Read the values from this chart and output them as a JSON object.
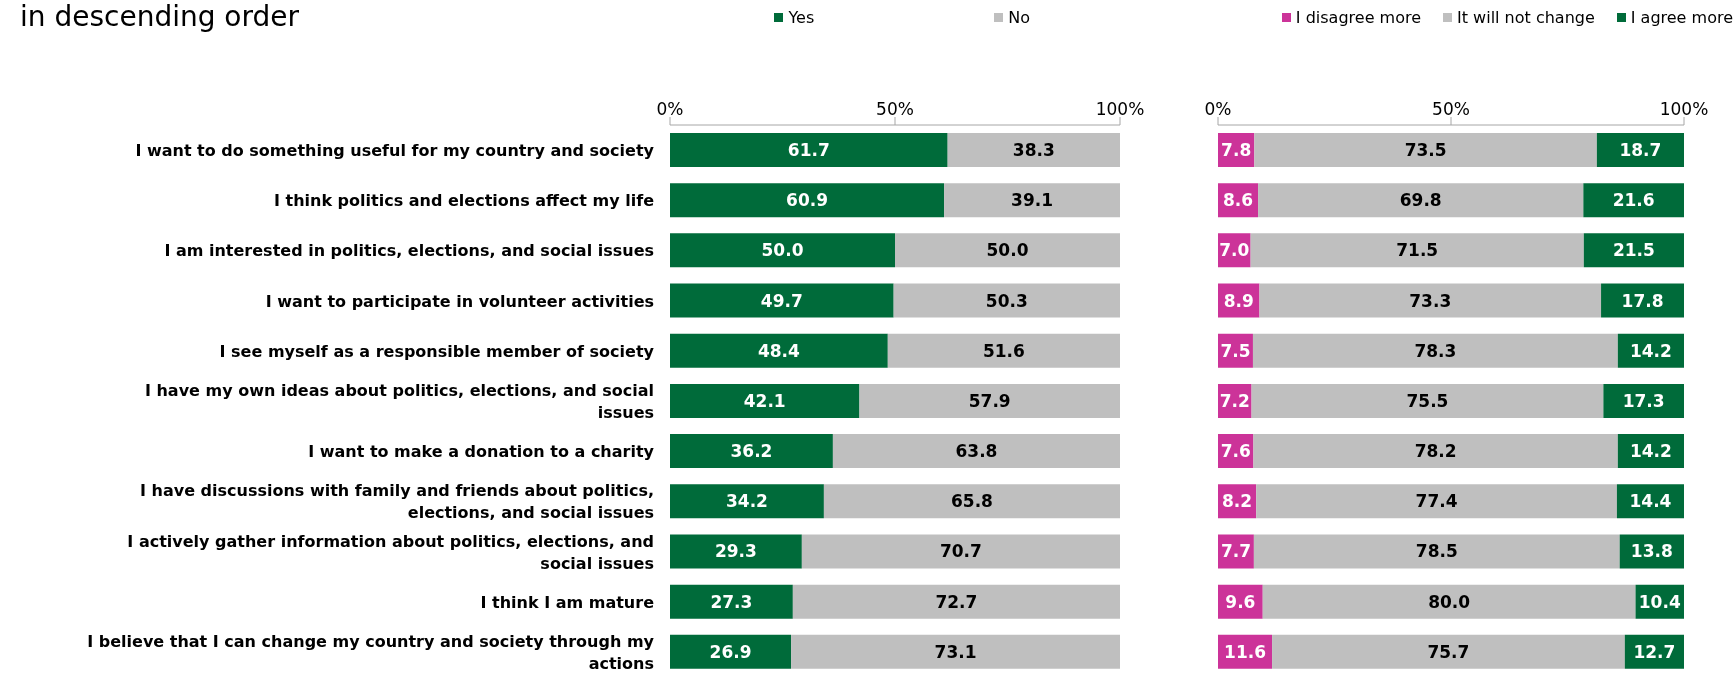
{
  "chart_data": [
    {
      "type": "bar",
      "title": "in descending order",
      "orientation": "horizontal",
      "stacked": true,
      "legend": "top",
      "grid": false,
      "categories": [
        "I want to do something useful for my country and society",
        "I think politics and elections affect my life",
        "I am interested in politics, elections, and social issues",
        "I want to participate in volunteer activities",
        "I see myself as a responsible member of society",
        "I have my own ideas about politics, elections, and social issues",
        "I want to make a donation to a charity",
        "I have discussions with family and friends about politics, elections, and social issues",
        "I actively gather information about politics, elections, and social issues",
        "I think I am mature",
        "I believe that I can change my country and society through my actions"
      ],
      "xlim": [
        0,
        100
      ],
      "xticks": [
        {
          "value": 0,
          "label": "0%"
        },
        {
          "value": 50,
          "label": "50%"
        },
        {
          "value": 100,
          "label": "100%"
        }
      ],
      "series": [
        {
          "name": "Yes",
          "color": "#006b3a",
          "values": [
            61.7,
            60.9,
            50.0,
            49.7,
            48.4,
            42.1,
            36.2,
            34.2,
            29.3,
            27.3,
            26.9
          ],
          "value_labels": [
            "61.7",
            "60.9",
            "50.0",
            "49.7",
            "48.4",
            "42.1",
            "36.2",
            "34.2",
            "29.3",
            "27.3",
            "26.9"
          ]
        },
        {
          "name": "No",
          "color": "#bfbfbf",
          "values": [
            38.3,
            39.1,
            50.0,
            50.3,
            51.6,
            57.9,
            63.8,
            65.8,
            70.7,
            72.7,
            73.1
          ],
          "value_labels": [
            "38.3",
            "39.1",
            "50.0",
            "50.3",
            "51.6",
            "57.9",
            "63.8",
            "65.8",
            "70.7",
            "72.7",
            "73.1"
          ]
        }
      ]
    },
    {
      "type": "bar",
      "orientation": "horizontal",
      "stacked": true,
      "legend": "top",
      "grid": false,
      "tick_labels": "x",
      "categories": [
        null,
        null,
        null,
        null,
        null,
        null,
        null,
        null,
        null,
        null,
        null
      ],
      "xlim": [
        0,
        100
      ],
      "xticks": [
        {
          "value": 0,
          "label": "0%"
        },
        {
          "value": 50,
          "label": "50%"
        },
        {
          "value": 100,
          "label": "100%"
        }
      ],
      "series": [
        {
          "name": "I disagree more",
          "color": "#cc3399",
          "values": [
            7.8,
            8.6,
            7.0,
            8.9,
            7.5,
            7.2,
            7.6,
            8.2,
            7.7,
            9.6,
            11.6
          ],
          "value_labels": [
            "7.8",
            "8.6",
            "7.0",
            "8.9",
            "7.5",
            "7.2",
            "7.6",
            "8.2",
            "7.7",
            "9.6",
            "11.6"
          ]
        },
        {
          "name": "It will not change",
          "color": "#bfbfbf",
          "values": [
            73.5,
            69.8,
            71.5,
            73.3,
            78.3,
            75.5,
            78.2,
            77.4,
            78.5,
            80.0,
            75.7
          ],
          "value_labels": [
            "73.5",
            "69.8",
            "71.5",
            "73.3",
            "78.3",
            "75.5",
            "78.2",
            "77.4",
            "78.5",
            "80.0",
            "75.7"
          ]
        },
        {
          "name": "I agree more",
          "color": "#006b3a",
          "values": [
            18.7,
            21.6,
            21.5,
            17.8,
            14.2,
            17.3,
            14.2,
            14.4,
            13.8,
            10.4,
            12.7
          ],
          "value_labels": [
            "18.7",
            "21.6",
            "21.5",
            "17.8",
            "14.2",
            "17.3",
            "14.2",
            "14.4",
            "13.8",
            "10.4",
            "12.7"
          ]
        }
      ]
    }
  ]
}
